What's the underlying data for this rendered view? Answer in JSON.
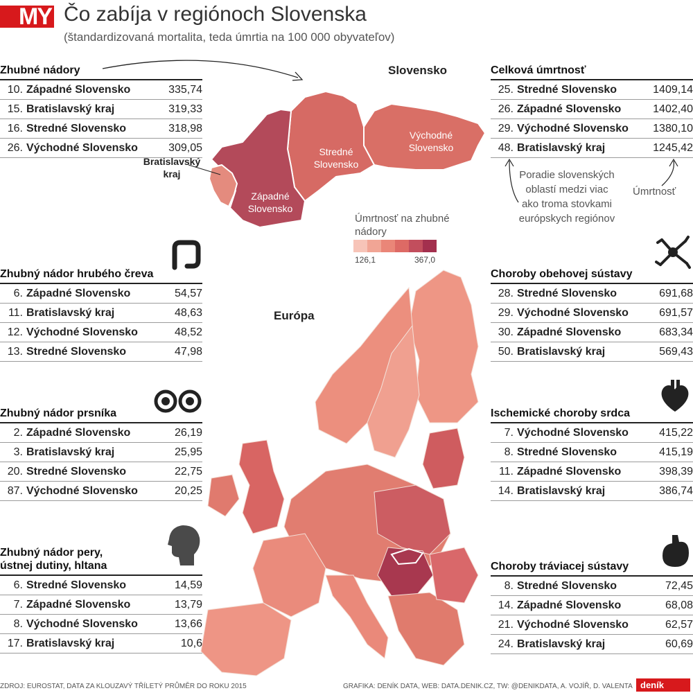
{
  "header": {
    "logo": "MY",
    "title": "Čo zabíja v regiónoch Slovenska",
    "subtitle": "(štandardizovaná mortalita, teda úmrtia na 100 000 obyvateľov)"
  },
  "panels": {
    "cancer": {
      "title": "Zhubné nádory",
      "rows": [
        {
          "rank": "10.",
          "region": "Západné Slovensko",
          "value": "335,74"
        },
        {
          "rank": "15.",
          "region": "Bratislavský kraj",
          "value": "319,33"
        },
        {
          "rank": "16.",
          "region": "Stredné Slovensko",
          "value": "318,98"
        },
        {
          "rank": "26.",
          "region": "Východné Slovensko",
          "value": "309,05"
        }
      ]
    },
    "colon": {
      "title": "Zhubný nádor hrubého čreva",
      "rows": [
        {
          "rank": "6.",
          "region": "Západné Slovensko",
          "value": "54,57"
        },
        {
          "rank": "11.",
          "region": "Bratislavský kraj",
          "value": "48,63"
        },
        {
          "rank": "12.",
          "region": "Východné Slovensko",
          "value": "48,52"
        },
        {
          "rank": "13.",
          "region": "Stredné Slovensko",
          "value": "47,98"
        }
      ]
    },
    "breast": {
      "title": "Zhubný nádor prsníka",
      "rows": [
        {
          "rank": "2.",
          "region": "Západné Slovensko",
          "value": "26,19"
        },
        {
          "rank": "3.",
          "region": "Bratislavský kraj",
          "value": "25,95"
        },
        {
          "rank": "20.",
          "region": "Stredné Slovensko",
          "value": "22,75"
        },
        {
          "rank": "87.",
          "region": "Východné Slovensko",
          "value": "20,25"
        }
      ]
    },
    "lip": {
      "title_line1": "Zhubný nádor pery,",
      "title_line2": "ústnej dutiny, hltana",
      "rows": [
        {
          "rank": "6.",
          "region": "Stredné Slovensko",
          "value": "14,59"
        },
        {
          "rank": "7.",
          "region": "Západné Slovensko",
          "value": "13,79"
        },
        {
          "rank": "8.",
          "region": "Východné Slovensko",
          "value": "13,66"
        },
        {
          "rank": "17.",
          "region": "Bratislavský kraj",
          "value": "10,6"
        }
      ]
    },
    "total": {
      "title": "Celková úmrtnosť",
      "rows": [
        {
          "rank": "25.",
          "region": "Stredné Slovensko",
          "value": "1409,14"
        },
        {
          "rank": "26.",
          "region": "Západné Slovensko",
          "value": "1402,40"
        },
        {
          "rank": "29.",
          "region": "Východné Slovensko",
          "value": "1380,10"
        },
        {
          "rank": "48.",
          "region": "Bratislavský kraj",
          "value": "1245,42"
        }
      ]
    },
    "circulatory": {
      "title": "Choroby obehovej sústavy",
      "rows": [
        {
          "rank": "28.",
          "region": "Stredné Slovensko",
          "value": "691,68"
        },
        {
          "rank": "29.",
          "region": "Východné Slovensko",
          "value": "691,57"
        },
        {
          "rank": "30.",
          "region": "Západné Slovensko",
          "value": "683,34"
        },
        {
          "rank": "50.",
          "region": "Bratislavský kraj",
          "value": "569,43"
        }
      ]
    },
    "ischemic": {
      "title": "Ischemické choroby srdca",
      "rows": [
        {
          "rank": "7.",
          "region": "Východné Slovensko",
          "value": "415,22"
        },
        {
          "rank": "8.",
          "region": "Stredné Slovensko",
          "value": "415,19"
        },
        {
          "rank": "11.",
          "region": "Západné Slovensko",
          "value": "398,39"
        },
        {
          "rank": "14.",
          "region": "Bratislavský kraj",
          "value": "386,74"
        }
      ]
    },
    "digestive": {
      "title": "Choroby tráviacej sústavy",
      "rows": [
        {
          "rank": "8.",
          "region": "Stredné Slovensko",
          "value": "72,45"
        },
        {
          "rank": "14.",
          "region": "Západné Slovensko",
          "value": "68,08"
        },
        {
          "rank": "21.",
          "region": "Východné Slovensko",
          "value": "62,57"
        },
        {
          "rank": "24.",
          "region": "Bratislavský kraj",
          "value": "60,69"
        }
      ]
    }
  },
  "slovakia_map": {
    "title": "Slovensko",
    "regions": {
      "zapadne": {
        "line1": "Západné",
        "line2": "Slovensko",
        "color": "#b34a5a"
      },
      "stredne": {
        "line1": "Stredné",
        "line2": "Slovensko",
        "color": "#d66a64"
      },
      "vychodne": {
        "line1": "Východné",
        "line2": "Slovensko",
        "color": "#d96f66"
      },
      "bratislava": {
        "line1": "Bratislavský",
        "line2": "kraj",
        "color": "#e48b7e"
      }
    },
    "annotation_rank": [
      "Poradie slovenských",
      "oblastí medzi viac",
      "ako troma stovkami",
      "európskych regiónov"
    ],
    "annotation_rate": "Úmrtnosť"
  },
  "legend": {
    "title_line1": "Úmrtnosť na zhubné",
    "title_line2": "nádory",
    "min": "126,1",
    "max": "367,0",
    "colors": [
      "#f7c4b8",
      "#f1a595",
      "#ea8678",
      "#dd6a65",
      "#c24e5d",
      "#a3304e"
    ]
  },
  "europe_map": {
    "title": "Európa"
  },
  "icons": [
    "colon-icon",
    "neuron-icon",
    "eyes-icon",
    "heart-icon",
    "head-icon",
    "stomach-icon"
  ],
  "footer": {
    "source": "ZDROJ: EUROSTAT, DATA ZA KLOUZAVÝ TŘÍLETÝ PRŮMĚR DO ROKU 2015",
    "credits": "GRAFIKA: DENÍK DATA, WEB: DATA.DENIK.CZ, TW: @DENIKDATA, A. VOJÍŘ, D. VALENTA",
    "brand": "deník"
  }
}
